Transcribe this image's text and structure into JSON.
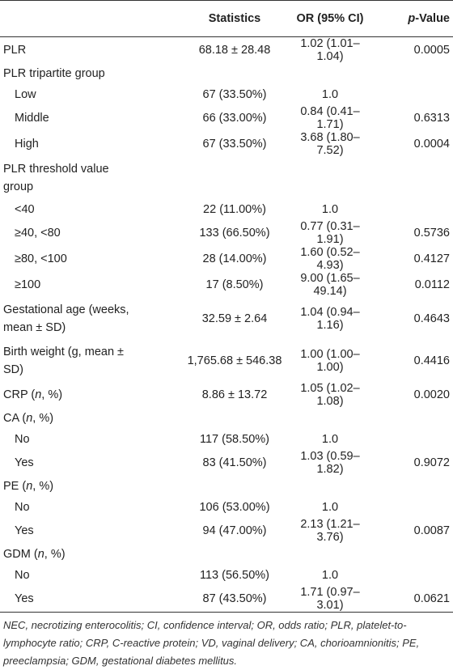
{
  "table": {
    "header": [
      "Statistics",
      "OR (95% CI)",
      [
        "",
        "p",
        "-Value"
      ]
    ],
    "groups": [
      {
        "label": "PLR",
        "statistics": "68.18 ± 28.48",
        "or": "1.02 (1.01–1.04)",
        "p": "0.0005",
        "items": []
      },
      {
        "label": "PLR tripartite group",
        "statistics": null,
        "or": null,
        "p": null,
        "items": [
          {
            "label": "Low",
            "statistics": "67 (33.50%)",
            "or": "1.0",
            "p": null
          },
          {
            "label": "Middle",
            "statistics": "66 (33.00%)",
            "or": "0.84 (0.41–1.71)",
            "p": "0.6313"
          },
          {
            "label": "High",
            "statistics": "67 (33.50%)",
            "or": "3.68 (1.80–7.52)",
            "p": "0.0004"
          }
        ]
      },
      {
        "label": "PLR threshold value group",
        "statistics": null,
        "or": null,
        "p": null,
        "items": [
          {
            "label": "<40",
            "statistics": "22 (11.00%)",
            "or": "1.0",
            "p": null
          },
          {
            "label": "≥40, <80",
            "statistics": "133 (66.50%)",
            "or": "0.77 (0.31–1.91)",
            "p": "0.5736"
          },
          {
            "label": "≥80, <100",
            "statistics": "28 (14.00%)",
            "or": "1.60 (0.52–4.93)",
            "p": "0.4127"
          },
          {
            "label": "≥100",
            "statistics": "17 (8.50%)",
            "or": "9.00 (1.65–49.14)",
            "p": "0.0112"
          }
        ]
      },
      {
        "label": "Gestational age (weeks, mean ± SD)",
        "statistics": "32.59 ± 2.64",
        "or": "1.04 (0.94–1.16)",
        "p": "0.4643",
        "items": []
      },
      {
        "label": "Birth weight (g, mean ± SD)",
        "statistics": "1,765.68 ± 546.38",
        "or": "1.00 (1.00–1.00)",
        "p": "0.4416",
        "items": []
      },
      {
        "label": [
          "CRP (",
          "n",
          ", %)"
        ],
        "statistics": "8.86 ± 13.72",
        "or": "1.05 (1.02–1.08)",
        "p": "0.0020",
        "items": []
      },
      {
        "label": [
          "CA (",
          "n",
          ", %)"
        ],
        "statistics": null,
        "or": null,
        "p": null,
        "items": [
          {
            "label": "No",
            "statistics": "117 (58.50%)",
            "or": "1.0",
            "p": null
          },
          {
            "label": "Yes",
            "statistics": "83 (41.50%)",
            "or": "1.03 (0.59–1.82)",
            "p": "0.9072"
          }
        ]
      },
      {
        "label": [
          "PE (",
          "n",
          ", %)"
        ],
        "statistics": null,
        "or": null,
        "p": null,
        "items": [
          {
            "label": "No",
            "statistics": "106 (53.00%)",
            "or": "1.0",
            "p": null
          },
          {
            "label": "Yes",
            "statistics": "94 (47.00%)",
            "or": "2.13 (1.21–3.76)",
            "p": "0.0087"
          }
        ]
      },
      {
        "label": [
          "GDM (",
          "n",
          ", %)"
        ],
        "statistics": null,
        "or": null,
        "p": null,
        "items": [
          {
            "label": "No",
            "statistics": "113 (56.50%)",
            "or": "1.0",
            "p": null
          },
          {
            "label": "Yes",
            "statistics": "87 (43.50%)",
            "or": "1.71 (0.97–3.01)",
            "p": "0.0621"
          }
        ]
      }
    ],
    "footnote": "NEC, necrotizing enterocolitis; CI, confidence interval; OR, odds ratio; PLR, platelet-to-lymphocyte ratio; CRP, C-reactive protein; VD, vaginal delivery; CA, chorioamnionitis; PE, preeclampsia; GDM, gestational diabetes mellitus."
  }
}
